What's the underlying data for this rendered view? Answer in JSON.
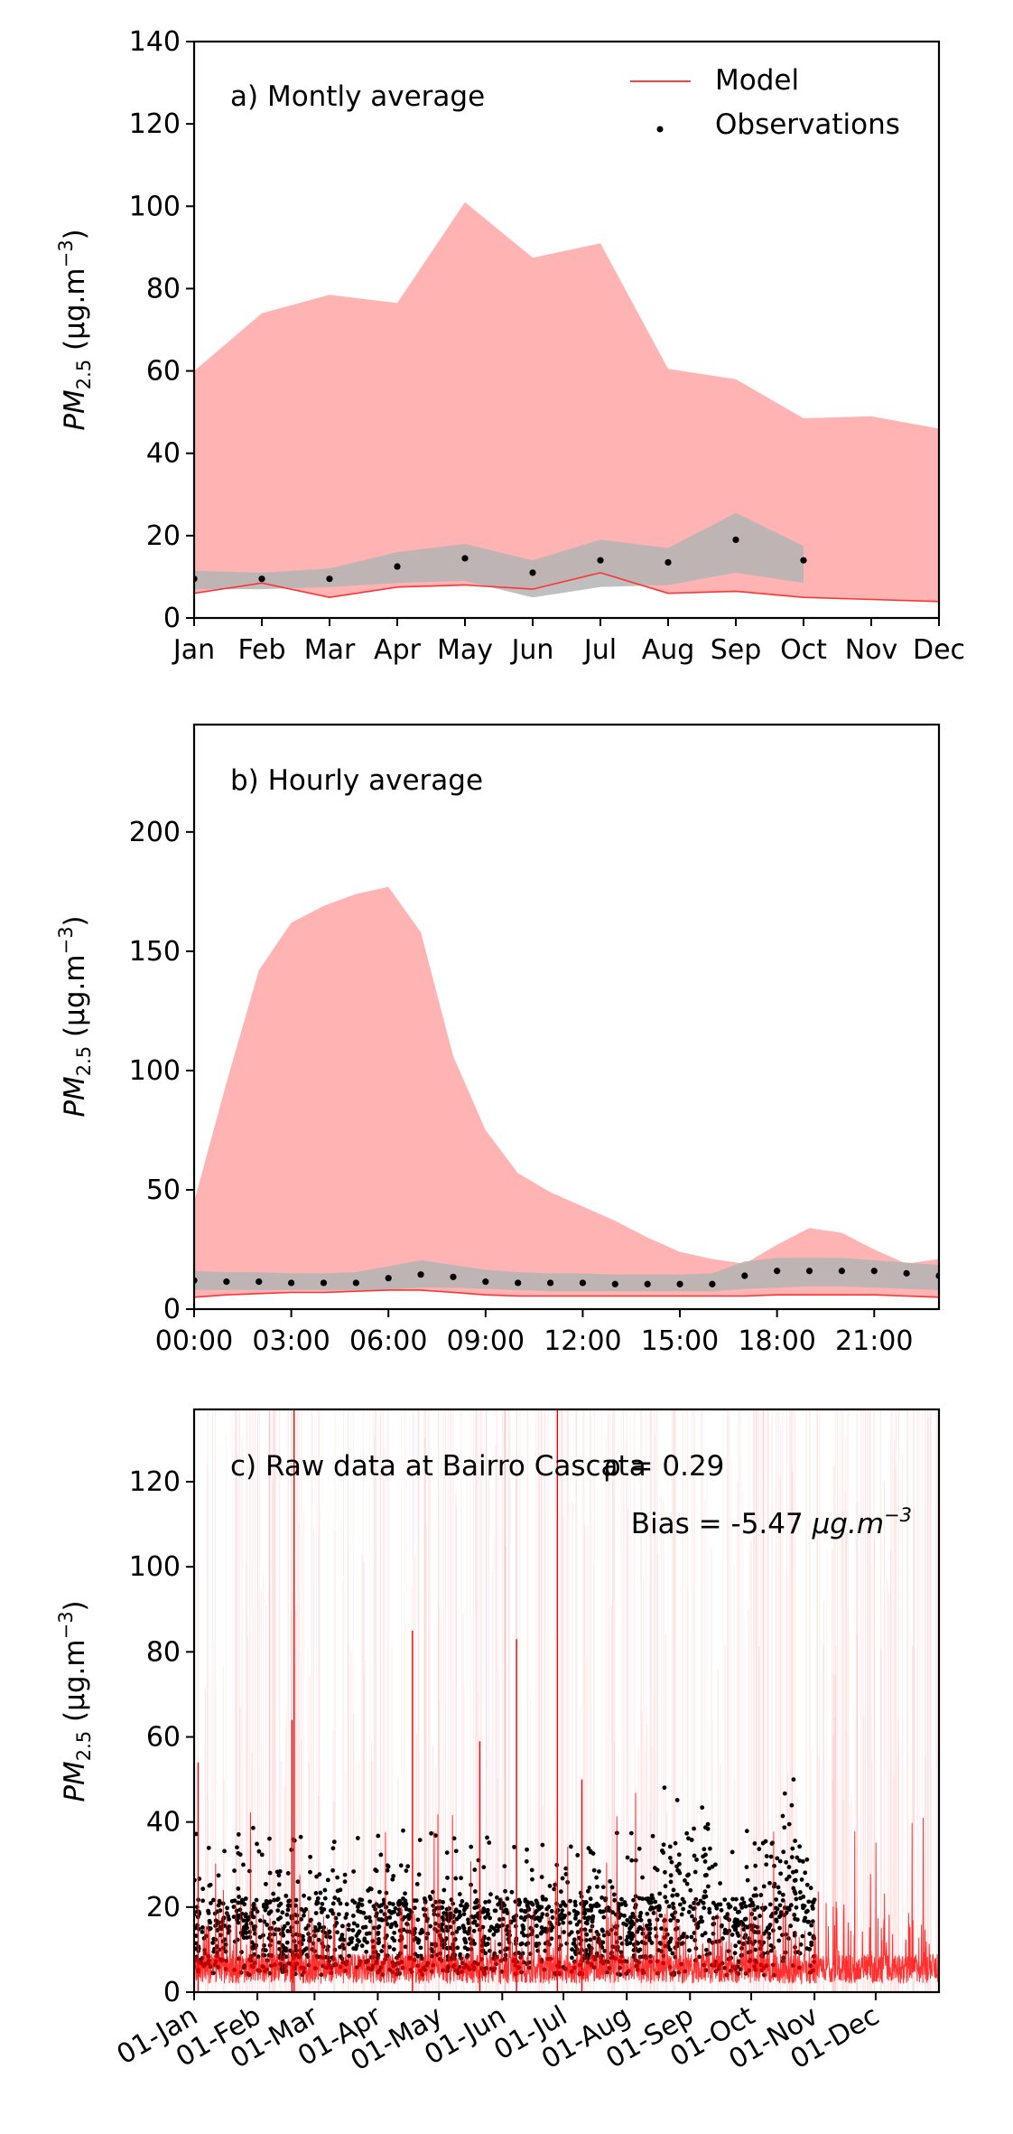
{
  "chart_data": [
    {
      "type": "area",
      "title": "a) Montly average",
      "xlabel": "",
      "ylabel": "PM2.5 (μg.m−3)",
      "ylabel_parts": {
        "main": "PM",
        "sub": "2.5",
        "unit": " (μg.m",
        "sup": "−3",
        "close": ")"
      },
      "categories": [
        "Jan",
        "Feb",
        "Mar",
        "Apr",
        "May",
        "Jun",
        "Jul",
        "Aug",
        "Sep",
        "Oct",
        "Nov",
        "Dec"
      ],
      "ylim": [
        0,
        140
      ],
      "yticks": [
        0,
        20,
        40,
        60,
        80,
        100,
        120,
        140
      ],
      "legend": {
        "placement": "top-right",
        "entries": [
          {
            "label": "Model",
            "marker": "line",
            "color": "#ff0000"
          },
          {
            "label": "Observations",
            "marker": "dot",
            "color": "#000000"
          }
        ]
      },
      "series": [
        {
          "name": "Model",
          "kind": "line",
          "color": "#ff3333",
          "values": [
            6,
            8.5,
            5,
            7.5,
            8,
            7,
            11,
            6,
            6.5,
            5,
            4.5,
            4
          ]
        },
        {
          "kind": "band",
          "color": "#ffb3b3",
          "lower": [
            6,
            8.5,
            5,
            7.5,
            8,
            7,
            11,
            6,
            6.5,
            5,
            4.5,
            4
          ],
          "upper": [
            60,
            74,
            78.5,
            76.5,
            101,
            87.5,
            91,
            60.5,
            58,
            48.5,
            49,
            46
          ]
        },
        {
          "name": "Observations",
          "kind": "points",
          "color": "#000000",
          "values": [
            9.5,
            9.5,
            9.5,
            12.5,
            14.5,
            11,
            14,
            13.5,
            19,
            14,
            null,
            null
          ]
        },
        {
          "kind": "band",
          "color": "#b4b4b4",
          "lower": [
            7,
            7,
            7.5,
            8.5,
            9,
            5,
            7.5,
            8,
            11,
            8.5,
            null,
            null
          ],
          "upper": [
            11.5,
            11,
            12,
            16,
            18,
            14,
            19,
            17,
            25.5,
            17.5,
            null,
            null
          ]
        }
      ]
    },
    {
      "type": "area",
      "title": "b) Hourly average",
      "xlabel": "",
      "ylabel": "PM2.5 (μg.m−3)",
      "ylabel_parts": {
        "main": "PM",
        "sub": "2.5",
        "unit": " (μg.m",
        "sup": "−3",
        "close": ")"
      },
      "x": [
        0,
        1,
        2,
        3,
        4,
        5,
        6,
        7,
        8,
        9,
        10,
        11,
        12,
        13,
        14,
        15,
        16,
        17,
        18,
        19,
        20,
        21,
        22,
        23
      ],
      "xticks": [
        0,
        3,
        6,
        9,
        12,
        15,
        18,
        21
      ],
      "xtick_labels": [
        "00:00",
        "03:00",
        "06:00",
        "09:00",
        "12:00",
        "15:00",
        "18:00",
        "21:00"
      ],
      "xlim": [
        0,
        23
      ],
      "ylim": [
        0,
        245
      ],
      "yticks": [
        0,
        50,
        100,
        150,
        200
      ],
      "series": [
        {
          "name": "Model",
          "kind": "line",
          "color": "#ff3333",
          "values": [
            5,
            6,
            6.5,
            7,
            7,
            7.5,
            8,
            8,
            7,
            6,
            5.5,
            5.5,
            5.5,
            5.5,
            5.5,
            5.5,
            5.5,
            5.5,
            6,
            6,
            6,
            6,
            5.5,
            5
          ]
        },
        {
          "kind": "band",
          "color": "#ffb3b3",
          "lower": [
            5,
            6,
            6.5,
            7,
            7,
            7.5,
            8,
            8,
            7,
            6,
            5.5,
            5.5,
            5.5,
            5.5,
            5.5,
            5.5,
            5.5,
            5.5,
            6,
            6,
            6,
            6,
            5.5,
            5
          ],
          "upper": [
            45,
            95,
            142,
            162,
            169,
            174,
            177,
            158,
            106,
            75,
            57,
            49,
            43,
            37,
            30,
            24,
            21,
            19,
            27,
            34,
            32,
            25,
            19,
            21
          ]
        },
        {
          "name": "Observations",
          "kind": "points",
          "color": "#000000",
          "values": [
            12,
            11.5,
            11.5,
            11,
            11,
            11,
            13,
            14.5,
            13.5,
            11.5,
            11,
            11,
            11,
            10.5,
            10.5,
            10.5,
            10.5,
            14,
            16,
            16,
            16,
            16,
            15,
            14
          ]
        },
        {
          "kind": "band",
          "color": "#b4b4b4",
          "lower": [
            8,
            8,
            8,
            8,
            8,
            8,
            8,
            9,
            9,
            8.5,
            8,
            7.5,
            7.5,
            7.5,
            7.5,
            7.5,
            7.5,
            8.5,
            9,
            9.5,
            9.5,
            9,
            8.5,
            8
          ],
          "upper": [
            16,
            15.5,
            15.5,
            15,
            15,
            15.5,
            18,
            20.5,
            18.5,
            16.5,
            15.5,
            15,
            15,
            14.5,
            14.5,
            14.5,
            15,
            20,
            21.5,
            21.5,
            21.5,
            20.5,
            19.5,
            18.5
          ]
        }
      ]
    },
    {
      "type": "line",
      "title": "c) Raw data at Bairro Cascata",
      "xlabel": "",
      "ylabel": "PM2.5 (μg.m−3)",
      "ylabel_parts": {
        "main": "PM",
        "sub": "2.5",
        "unit": " (μg.m",
        "sup": "−3",
        "close": ")"
      },
      "annotations": {
        "correlation": "ρ = 0.29",
        "bias_text": "Bias = -5.47 ",
        "bias_unit": "μg.m",
        "bias_sup": "−3"
      },
      "xticks": [
        0,
        31,
        59,
        90,
        120,
        151,
        181,
        212,
        243,
        273,
        304,
        334
      ],
      "xtick_labels": [
        "01-Jan",
        "01-Feb",
        "01-Mar",
        "01-Apr",
        "01-May",
        "01-Jun",
        "01-Jul",
        "01-Aug",
        "01-Sep",
        "01-Oct",
        "01-Nov",
        "01-Dec"
      ],
      "xlim": [
        0,
        365
      ],
      "ylim": [
        0,
        137
      ],
      "yticks": [
        0,
        20,
        40,
        60,
        80,
        100,
        120
      ],
      "series": [
        {
          "name": "Model",
          "kind": "line",
          "color": "#ff0000"
        },
        {
          "name": "Observations",
          "kind": "points",
          "color": "#000000",
          "x_range": [
            0,
            304
          ]
        }
      ]
    }
  ]
}
